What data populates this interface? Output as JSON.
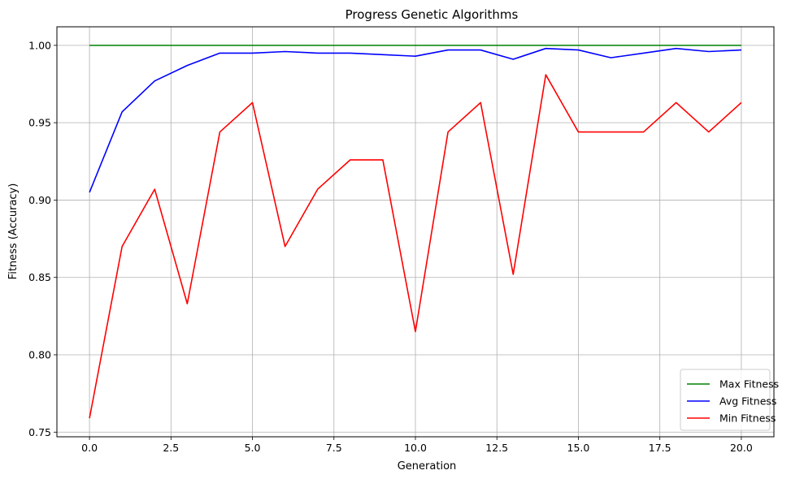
{
  "chart_data": {
    "type": "line",
    "title": "Progress Genetic Algorithms",
    "xlabel": "Generation",
    "ylabel": "Fitness (Accuracy)",
    "xlim": [
      -1.0,
      21.0
    ],
    "ylim": [
      0.747,
      1.012
    ],
    "xticks": [
      0.0,
      2.5,
      5.0,
      7.5,
      10.0,
      12.5,
      15.0,
      17.5,
      20.0
    ],
    "xtick_labels": [
      "0.0",
      "2.5",
      "5.0",
      "7.5",
      "10.0",
      "12.5",
      "15.0",
      "17.5",
      "20.0"
    ],
    "yticks": [
      0.75,
      0.8,
      0.85,
      0.9,
      0.95,
      1.0
    ],
    "ytick_labels": [
      "0.75",
      "0.80",
      "0.85",
      "0.90",
      "0.95",
      "1.00"
    ],
    "grid": true,
    "legend_position": "lower-right",
    "x": [
      0,
      1,
      2,
      3,
      4,
      5,
      6,
      7,
      8,
      9,
      10,
      11,
      12,
      13,
      14,
      15,
      16,
      17,
      18,
      19,
      20
    ],
    "series": [
      {
        "name": "Max Fitness",
        "color": "#008000",
        "values": [
          1.0,
          1.0,
          1.0,
          1.0,
          1.0,
          1.0,
          1.0,
          1.0,
          1.0,
          1.0,
          1.0,
          1.0,
          1.0,
          1.0,
          1.0,
          1.0,
          1.0,
          1.0,
          1.0,
          1.0,
          1.0
        ]
      },
      {
        "name": "Avg Fitness",
        "color": "#0000ff",
        "values": [
          0.905,
          0.957,
          0.977,
          0.987,
          0.995,
          0.995,
          0.996,
          0.995,
          0.995,
          0.994,
          0.993,
          0.997,
          0.997,
          0.991,
          0.998,
          0.997,
          0.992,
          0.995,
          0.998,
          0.996,
          0.997
        ]
      },
      {
        "name": "Min Fitness",
        "color": "#ff0000",
        "values": [
          0.759,
          0.87,
          0.907,
          0.833,
          0.944,
          0.963,
          0.87,
          0.907,
          0.926,
          0.926,
          0.815,
          0.944,
          0.963,
          0.852,
          0.981,
          0.944,
          0.944,
          0.944,
          0.963,
          0.944,
          0.963
        ]
      }
    ]
  }
}
